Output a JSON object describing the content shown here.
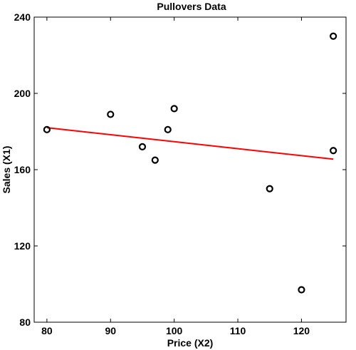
{
  "chart_data": {
    "type": "scatter",
    "title": "Pullovers Data",
    "xlabel": "Price (X2)",
    "ylabel": "Sales (X1)",
    "xlim": [
      78,
      127
    ],
    "ylim": [
      80,
      240
    ],
    "xticks": [
      80,
      90,
      100,
      110,
      120
    ],
    "yticks": [
      80,
      120,
      160,
      200,
      240
    ],
    "grid": false,
    "points": [
      {
        "x": 80,
        "y": 181
      },
      {
        "x": 90,
        "y": 189
      },
      {
        "x": 95,
        "y": 172
      },
      {
        "x": 97,
        "y": 165
      },
      {
        "x": 99,
        "y": 181
      },
      {
        "x": 100,
        "y": 192
      },
      {
        "x": 115,
        "y": 150
      },
      {
        "x": 120,
        "y": 97
      },
      {
        "x": 125,
        "y": 230
      },
      {
        "x": 125,
        "y": 170
      }
    ],
    "fit_line": {
      "x": [
        80,
        125
      ],
      "y": [
        182,
        165.5
      ]
    },
    "colors": {
      "markers": "#000000",
      "fit_line": "#ff0000",
      "axes": "#000000"
    }
  }
}
